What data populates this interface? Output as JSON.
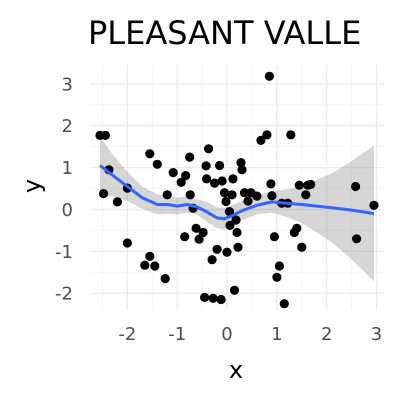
{
  "chart_data": {
    "type": "scatter",
    "title": "PLEASANT VALLE",
    "xlabel": "x",
    "ylabel": "y",
    "xlim": [
      -2.75,
      3.15
    ],
    "ylim": [
      -2.4,
      3.45
    ],
    "x_ticks": [
      -2,
      -1,
      0,
      1,
      2,
      3
    ],
    "x_tick_labels": [
      "-2",
      "-1",
      "0",
      "1",
      "2",
      "3"
    ],
    "y_ticks": [
      -2,
      -1,
      0,
      1,
      2,
      3
    ],
    "y_tick_labels": [
      "-2",
      "-1",
      "0",
      "1",
      "2",
      "3"
    ],
    "grid": true,
    "points": [
      {
        "x": -2.44,
        "y": 1.77
      },
      {
        "x": -2.55,
        "y": 1.77
      },
      {
        "x": -2.48,
        "y": 0.38
      },
      {
        "x": -2.37,
        "y": 0.95
      },
      {
        "x": -2.0,
        "y": 0.51
      },
      {
        "x": -2.0,
        "y": -0.8
      },
      {
        "x": -2.2,
        "y": 0.18
      },
      {
        "x": -1.65,
        "y": -1.33
      },
      {
        "x": -1.55,
        "y": -1.12
      },
      {
        "x": -1.45,
        "y": -1.35
      },
      {
        "x": -1.55,
        "y": 1.33
      },
      {
        "x": -1.4,
        "y": 1.08
      },
      {
        "x": -1.24,
        "y": -1.65
      },
      {
        "x": -1.2,
        "y": 0.35
      },
      {
        "x": -1.08,
        "y": 0.88
      },
      {
        "x": -0.92,
        "y": 0.65
      },
      {
        "x": -0.83,
        "y": 0.81
      },
      {
        "x": -0.85,
        "y": -0.65
      },
      {
        "x": -0.74,
        "y": 0.35
      },
      {
        "x": -0.75,
        "y": 1.25
      },
      {
        "x": -0.68,
        "y": 0.03
      },
      {
        "x": -0.62,
        "y": -0.45
      },
      {
        "x": -0.56,
        "y": -0.71
      },
      {
        "x": -0.48,
        "y": -0.55
      },
      {
        "x": -0.42,
        "y": 1.04
      },
      {
        "x": -0.41,
        "y": 0.73
      },
      {
        "x": -0.37,
        "y": 1.45
      },
      {
        "x": -0.3,
        "y": -1.2
      },
      {
        "x": -0.45,
        "y": -2.1
      },
      {
        "x": -0.28,
        "y": -2.12
      },
      {
        "x": -0.12,
        "y": -2.15
      },
      {
        "x": -0.25,
        "y": 0.63
      },
      {
        "x": -0.15,
        "y": 1.05
      },
      {
        "x": -0.1,
        "y": 0.68
      },
      {
        "x": -0.05,
        "y": 0.4
      },
      {
        "x": -0.02,
        "y": 0.19
      },
      {
        "x": 0.05,
        "y": -0.05
      },
      {
        "x": 0.06,
        "y": -0.38
      },
      {
        "x": -0.2,
        "y": -0.95
      },
      {
        "x": 0.0,
        "y": -1.02
      },
      {
        "x": 0.1,
        "y": 0.35
      },
      {
        "x": 0.12,
        "y": 0.73
      },
      {
        "x": 0.18,
        "y": -0.25
      },
      {
        "x": 0.2,
        "y": -0.55
      },
      {
        "x": 0.22,
        "y": -0.9
      },
      {
        "x": 0.15,
        "y": -1.93
      },
      {
        "x": 0.28,
        "y": 1.12
      },
      {
        "x": 0.3,
        "y": 0.95
      },
      {
        "x": 0.35,
        "y": 0.4
      },
      {
        "x": 0.42,
        "y": 0.2
      },
      {
        "x": 0.48,
        "y": 0.4
      },
      {
        "x": 0.6,
        "y": 0.32
      },
      {
        "x": 0.68,
        "y": 1.65
      },
      {
        "x": 0.8,
        "y": 1.78
      },
      {
        "x": 0.85,
        "y": 3.18
      },
      {
        "x": 0.88,
        "y": 0.61
      },
      {
        "x": 0.9,
        "y": 0.33
      },
      {
        "x": 0.95,
        "y": -0.65
      },
      {
        "x": 1.0,
        "y": -1.62
      },
      {
        "x": 1.05,
        "y": -1.35
      },
      {
        "x": 1.1,
        "y": 0.15
      },
      {
        "x": 1.22,
        "y": 0.15
      },
      {
        "x": 1.15,
        "y": -2.25
      },
      {
        "x": 1.28,
        "y": 1.78
      },
      {
        "x": 1.35,
        "y": -0.55
      },
      {
        "x": 1.4,
        "y": -0.45
      },
      {
        "x": 1.45,
        "y": 0.58
      },
      {
        "x": 1.5,
        "y": -0.9
      },
      {
        "x": 1.58,
        "y": 0.35
      },
      {
        "x": 1.62,
        "y": 0.58
      },
      {
        "x": 1.68,
        "y": 0.6
      },
      {
        "x": 2.58,
        "y": 0.55
      },
      {
        "x": 2.6,
        "y": -0.7
      },
      {
        "x": 2.95,
        "y": 0.1
      }
    ],
    "smooth_line": {
      "x": [
        -2.55,
        -2.3,
        -2.0,
        -1.7,
        -1.4,
        -1.2,
        -1.0,
        -0.8,
        -0.6,
        -0.4,
        -0.2,
        -0.05,
        0.1,
        0.3,
        0.6,
        0.9,
        1.2,
        1.5,
        1.8,
        2.1,
        2.4,
        2.7,
        2.95
      ],
      "y": [
        1.05,
        0.82,
        0.55,
        0.28,
        0.12,
        0.12,
        0.08,
        0.12,
        0.06,
        -0.06,
        -0.2,
        -0.22,
        -0.15,
        -0.03,
        0.1,
        0.18,
        0.15,
        0.12,
        0.08,
        0.04,
        0.0,
        -0.05,
        -0.1
      ],
      "ci_lower": [
        0.35,
        0.32,
        0.2,
        0.02,
        -0.12,
        -0.1,
        -0.12,
        -0.08,
        -0.12,
        -0.3,
        -0.45,
        -0.48,
        -0.4,
        -0.25,
        -0.12,
        -0.08,
        -0.18,
        -0.32,
        -0.55,
        -0.78,
        -1.08,
        -1.42,
        -1.72
      ],
      "ci_upper": [
        1.75,
        1.32,
        0.9,
        0.55,
        0.36,
        0.34,
        0.28,
        0.32,
        0.24,
        0.18,
        0.05,
        0.04,
        0.1,
        0.2,
        0.32,
        0.44,
        0.48,
        0.56,
        0.71,
        0.86,
        1.08,
        1.32,
        1.52
      ]
    },
    "colors": {
      "points": "#000000",
      "smooth_line": "#3366ff",
      "ci_band": "#999999",
      "grid_major": "#ebebeb",
      "grid_minor": "#f5f5f5",
      "tick_label": "#4d4d4d"
    }
  }
}
